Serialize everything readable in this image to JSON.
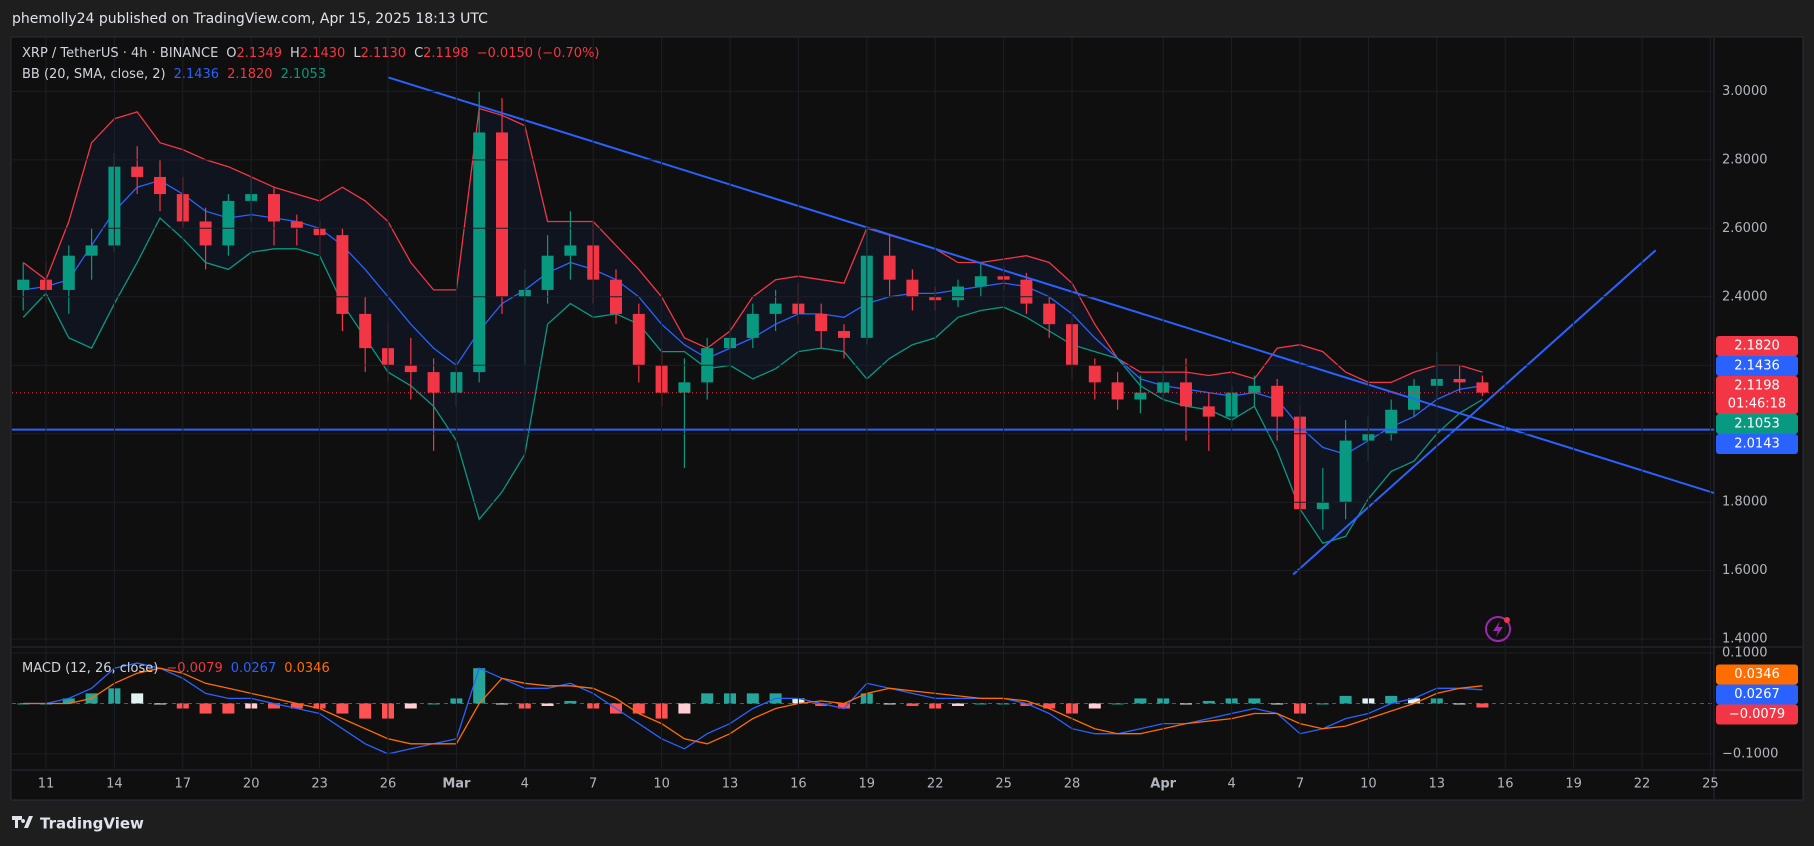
{
  "header": {
    "publisher": "phemolly24 published on TradingView.com, Apr 15, 2025 18:13 UTC"
  },
  "footer": {
    "brand": "TradingView"
  },
  "chart_data": [
    {
      "type": "candlestick",
      "symbol": "XRP / TetherUS · 4h · BINANCE",
      "ohlc_legend": [
        {
          "key": "O",
          "value": "2.1349"
        },
        {
          "key": "H",
          "value": "2.1430"
        },
        {
          "key": "L",
          "value": "2.1130"
        },
        {
          "key": "C",
          "value": "2.1198"
        }
      ],
      "change": "−0.0150 (−0.70%)",
      "indicator": "BB (20, SMA, close, 2)",
      "indicator_values": [
        {
          "value": "2.1436",
          "color": "#2962ff"
        },
        {
          "value": "2.1820",
          "color": "#f23645"
        },
        {
          "value": "2.1053",
          "color": "#089981"
        }
      ],
      "categories": [
        null,
        "11",
        null,
        null,
        "14",
        null,
        null,
        "17",
        null,
        null,
        "20",
        null,
        null,
        "23",
        null,
        null,
        "26",
        null,
        null,
        "Mar",
        null,
        null,
        "4",
        null,
        null,
        "7",
        null,
        null,
        "10",
        null,
        null,
        "13",
        null,
        null,
        "16",
        null,
        null,
        "19",
        null,
        null,
        "22",
        null,
        null,
        "25",
        null,
        null,
        "28",
        null,
        null,
        null,
        "Apr",
        null,
        null,
        "4",
        null,
        null,
        "7",
        null,
        null,
        "10",
        null,
        null,
        "13",
        null,
        null,
        "16",
        null,
        null,
        "19",
        null,
        null,
        "22",
        null,
        null,
        "25"
      ],
      "open": [
        2.42,
        2.45,
        2.42,
        2.52,
        2.55,
        2.78,
        2.75,
        2.7,
        2.62,
        2.55,
        2.68,
        2.7,
        2.62,
        2.6,
        2.58,
        2.35,
        2.25,
        2.2,
        2.18,
        2.12,
        2.18,
        2.88,
        2.4,
        2.42,
        2.52,
        2.55,
        2.45,
        2.35,
        2.2,
        2.12,
        2.15,
        2.25,
        2.28,
        2.35,
        2.38,
        2.35,
        2.3,
        2.28,
        2.52,
        2.45,
        2.4,
        2.39,
        2.43,
        2.46,
        2.45,
        2.38,
        2.32,
        2.2,
        2.15,
        2.1,
        2.12,
        2.15,
        2.08,
        2.05,
        2.12,
        2.14,
        2.05,
        1.78,
        1.8,
        1.98,
        2.0,
        2.07,
        2.14,
        2.16,
        2.15,
        null,
        null,
        null,
        null,
        null,
        null,
        null,
        null,
        null,
        null
      ],
      "high": [
        2.5,
        2.5,
        2.55,
        2.6,
        2.82,
        2.84,
        2.8,
        2.75,
        2.66,
        2.7,
        2.75,
        2.72,
        2.64,
        2.62,
        2.6,
        2.4,
        2.32,
        2.28,
        2.22,
        2.22,
        3.0,
        2.98,
        2.48,
        2.58,
        2.65,
        2.62,
        2.48,
        2.38,
        2.25,
        2.22,
        2.28,
        2.32,
        2.38,
        2.42,
        2.44,
        2.38,
        2.32,
        2.6,
        2.58,
        2.48,
        2.43,
        2.45,
        2.5,
        2.49,
        2.47,
        2.4,
        2.34,
        2.22,
        2.18,
        2.17,
        2.2,
        2.22,
        2.12,
        2.14,
        2.17,
        2.16,
        2.08,
        1.9,
        2.04,
        2.05,
        2.1,
        2.16,
        2.24,
        2.2,
        2.17,
        null,
        null,
        null,
        null,
        null,
        null,
        null,
        null,
        null,
        null
      ],
      "low": [
        2.36,
        2.38,
        2.35,
        2.45,
        2.53,
        2.7,
        2.65,
        2.6,
        2.48,
        2.52,
        2.62,
        2.55,
        2.55,
        2.52,
        2.3,
        2.18,
        2.15,
        2.1,
        1.95,
        2.08,
        2.15,
        2.35,
        2.2,
        2.38,
        2.45,
        2.38,
        2.32,
        2.15,
        2.08,
        1.9,
        2.1,
        2.2,
        2.25,
        2.3,
        2.32,
        2.25,
        2.22,
        2.26,
        2.4,
        2.36,
        2.36,
        2.37,
        2.4,
        2.42,
        2.35,
        2.28,
        2.16,
        2.1,
        2.07,
        2.06,
        2.1,
        1.98,
        1.95,
        2.02,
        2.08,
        1.98,
        1.62,
        1.72,
        1.75,
        1.92,
        1.98,
        2.05,
        2.1,
        2.12,
        2.11,
        null,
        null,
        null,
        null,
        null,
        null,
        null,
        null,
        null,
        null
      ],
      "close": [
        2.45,
        2.42,
        2.52,
        2.55,
        2.78,
        2.75,
        2.7,
        2.62,
        2.55,
        2.68,
        2.7,
        2.62,
        2.6,
        2.58,
        2.35,
        2.25,
        2.2,
        2.18,
        2.12,
        2.18,
        2.88,
        2.4,
        2.42,
        2.52,
        2.55,
        2.45,
        2.35,
        2.2,
        2.12,
        2.15,
        2.25,
        2.28,
        2.35,
        2.38,
        2.35,
        2.3,
        2.28,
        2.52,
        2.45,
        2.4,
        2.39,
        2.43,
        2.46,
        2.45,
        2.38,
        2.32,
        2.2,
        2.15,
        2.1,
        2.12,
        2.15,
        2.08,
        2.05,
        2.12,
        2.14,
        2.05,
        1.78,
        1.8,
        1.98,
        2.0,
        2.07,
        2.14,
        2.16,
        2.15,
        2.12,
        null,
        null,
        null,
        null,
        null,
        null,
        null,
        null,
        null,
        null
      ],
      "up_color": "#089981",
      "down_color": "#f23645",
      "bb_upper": [
        2.5,
        2.45,
        2.62,
        2.85,
        2.92,
        2.94,
        2.85,
        2.83,
        2.8,
        2.78,
        2.75,
        2.72,
        2.7,
        2.68,
        2.72,
        2.68,
        2.62,
        2.5,
        2.42,
        2.42,
        2.95,
        2.93,
        2.9,
        2.62,
        2.62,
        2.62,
        2.55,
        2.48,
        2.4,
        2.28,
        2.25,
        2.3,
        2.4,
        2.45,
        2.46,
        2.45,
        2.44,
        2.6,
        2.58,
        2.56,
        2.54,
        2.5,
        2.5,
        2.51,
        2.52,
        2.5,
        2.44,
        2.32,
        2.22,
        2.18,
        2.18,
        2.18,
        2.17,
        2.18,
        2.16,
        2.25,
        2.26,
        2.24,
        2.18,
        2.15,
        2.15,
        2.18,
        2.2,
        2.2,
        2.18,
        null,
        null,
        null,
        null,
        null,
        null,
        null,
        null,
        null,
        null
      ],
      "bb_middle": [
        2.42,
        2.43,
        2.45,
        2.55,
        2.65,
        2.72,
        2.74,
        2.7,
        2.65,
        2.63,
        2.64,
        2.63,
        2.62,
        2.6,
        2.55,
        2.48,
        2.4,
        2.32,
        2.25,
        2.2,
        2.3,
        2.38,
        2.42,
        2.47,
        2.5,
        2.48,
        2.45,
        2.4,
        2.32,
        2.26,
        2.22,
        2.25,
        2.28,
        2.32,
        2.35,
        2.35,
        2.34,
        2.38,
        2.4,
        2.41,
        2.41,
        2.42,
        2.43,
        2.44,
        2.43,
        2.4,
        2.35,
        2.28,
        2.22,
        2.16,
        2.14,
        2.13,
        2.12,
        2.11,
        2.12,
        2.1,
        2.02,
        1.96,
        1.94,
        1.98,
        2.02,
        2.05,
        2.1,
        2.13,
        2.14,
        null,
        null,
        null,
        null,
        null,
        null,
        null,
        null,
        null,
        null
      ],
      "bb_lower": [
        2.34,
        2.41,
        2.28,
        2.25,
        2.38,
        2.5,
        2.63,
        2.57,
        2.5,
        2.48,
        2.53,
        2.54,
        2.54,
        2.52,
        2.38,
        2.28,
        2.18,
        2.14,
        2.08,
        1.98,
        1.75,
        1.83,
        1.94,
        2.32,
        2.38,
        2.34,
        2.35,
        2.32,
        2.24,
        2.24,
        2.19,
        2.2,
        2.16,
        2.19,
        2.24,
        2.25,
        2.24,
        2.16,
        2.22,
        2.26,
        2.28,
        2.34,
        2.36,
        2.37,
        2.34,
        2.3,
        2.26,
        2.24,
        2.22,
        2.14,
        2.1,
        2.08,
        2.07,
        2.04,
        2.08,
        1.95,
        1.78,
        1.68,
        1.7,
        1.81,
        1.89,
        1.92,
        2.0,
        2.06,
        2.1,
        null,
        null,
        null,
        null,
        null,
        null,
        null,
        null,
        null,
        null
      ],
      "bb_colors": {
        "upper": "#f23645",
        "middle": "#2962ff",
        "lower": "#089981",
        "fill": "#2962ff"
      },
      "ylim": [
        1.38,
        3.15
      ],
      "yticks": [
        {
          "value": 1.4,
          "label": "1.4000"
        },
        {
          "value": 1.6,
          "label": "1.6000"
        },
        {
          "value": 1.8,
          "label": "1.8000"
        },
        {
          "value": 2.0,
          "label": "2.0000"
        },
        {
          "value": 2.2,
          "label": "2.2000"
        },
        {
          "value": 2.4,
          "label": "2.4000"
        },
        {
          "value": 2.6,
          "label": "2.6000"
        },
        {
          "value": 2.8,
          "label": "2.8000"
        },
        {
          "value": 3.0,
          "label": "3.0000"
        }
      ],
      "grid": true,
      "hline": {
        "value": 2.012,
        "color": "#2962ff"
      },
      "trendlines": [
        {
          "x": [
            16,
            74.2
          ],
          "y": [
            3.041,
            1.826
          ]
        },
        {
          "x": [
            55.7,
            71.6
          ],
          "y": [
            1.589,
            2.536
          ]
        }
      ],
      "trendline_color": "#2962ff",
      "price_labels": [
        {
          "value": 2.182,
          "label": "2.1820",
          "color": "#f23645"
        },
        {
          "value": 2.1436,
          "label": "2.1436",
          "color": "#2962ff"
        },
        {
          "value": 2.1198,
          "label": "2.1198",
          "color": "#f23645",
          "countdown": "01:46:18"
        },
        {
          "value": 2.1053,
          "label": "2.1053",
          "color": "#089981"
        },
        {
          "value": 2.0143,
          "label": "2.0143",
          "color": "#2962ff"
        }
      ]
    },
    {
      "type": "macd",
      "indicator": "MACD (12, 26, close)",
      "indicator_values": [
        {
          "value": "−0.0079",
          "color": "#f23645"
        },
        {
          "value": "0.0267",
          "color": "#2962ff"
        },
        {
          "value": "0.0346",
          "color": "#ff6d00"
        }
      ],
      "histogram": [
        0,
        0,
        0.01,
        0.02,
        0.03,
        0.02,
        0,
        -0.01,
        -0.02,
        -0.02,
        -0.01,
        -0.01,
        -0.01,
        -0.01,
        -0.02,
        -0.03,
        -0.03,
        -0.01,
        0,
        0.01,
        0.07,
        0,
        -0.01,
        -0.005,
        0.005,
        -0.01,
        -0.02,
        -0.02,
        -0.03,
        -0.02,
        0.02,
        0.02,
        0.02,
        0.02,
        0.01,
        -0.005,
        -0.01,
        0.02,
        0,
        -0.005,
        -0.01,
        -0.005,
        0,
        0,
        -0.005,
        -0.01,
        -0.02,
        -0.01,
        0,
        0.01,
        0.01,
        0,
        0.005,
        0.01,
        0.01,
        0,
        -0.02,
        0,
        0.015,
        0.01,
        0.015,
        0.01,
        0.01,
        0,
        -0.008,
        null,
        null,
        null,
        null,
        null,
        null,
        null,
        null,
        null,
        null
      ],
      "macd": [
        0,
        0,
        0.01,
        0.03,
        0.07,
        0.08,
        0.07,
        0.05,
        0.02,
        0.01,
        0.01,
        0,
        -0.01,
        -0.02,
        -0.05,
        -0.08,
        -0.1,
        -0.09,
        -0.08,
        -0.07,
        0.07,
        0.05,
        0.03,
        0.03,
        0.04,
        0.02,
        -0.01,
        -0.04,
        -0.07,
        -0.09,
        -0.06,
        -0.04,
        -0.01,
        0.01,
        0.01,
        0,
        -0.01,
        0.04,
        0.03,
        0.02,
        0.01,
        0.01,
        0.01,
        0.01,
        0,
        -0.02,
        -0.05,
        -0.06,
        -0.06,
        -0.05,
        -0.04,
        -0.04,
        -0.03,
        -0.02,
        -0.01,
        -0.02,
        -0.06,
        -0.05,
        -0.03,
        -0.02,
        0,
        0.01,
        0.03,
        0.03,
        0.027,
        null,
        null,
        null,
        null,
        null,
        null,
        null,
        null,
        null,
        null
      ],
      "signal": [
        0,
        0,
        0,
        0.01,
        0.04,
        0.06,
        0.07,
        0.06,
        0.04,
        0.03,
        0.02,
        0.01,
        0,
        -0.01,
        -0.03,
        -0.05,
        -0.07,
        -0.08,
        -0.08,
        -0.08,
        0,
        0.05,
        0.04,
        0.035,
        0.035,
        0.03,
        0.01,
        -0.02,
        -0.04,
        -0.07,
        -0.08,
        -0.06,
        -0.03,
        -0.01,
        0,
        0.005,
        0,
        0.02,
        0.03,
        0.025,
        0.02,
        0.015,
        0.01,
        0.01,
        0.005,
        -0.01,
        -0.03,
        -0.05,
        -0.06,
        -0.06,
        -0.05,
        -0.04,
        -0.035,
        -0.03,
        -0.02,
        -0.02,
        -0.04,
        -0.05,
        -0.045,
        -0.03,
        -0.015,
        0,
        0.02,
        0.03,
        0.035,
        null,
        null,
        null,
        null,
        null,
        null,
        null,
        null,
        null,
        null
      ],
      "macd_color": "#2962ff",
      "signal_color": "#ff6d00",
      "hist_colors": [
        "#26a69a",
        "#e0f2f1",
        "#ffcdd2",
        "#ff5252"
      ],
      "ylim": [
        -0.13,
        0.11
      ],
      "yticks": [
        {
          "value": -0.1,
          "label": "−0.1000"
        },
        {
          "value": 0.1,
          "label": "0.1000"
        }
      ],
      "value_labels": [
        {
          "value": 0.0346,
          "label": "0.0346",
          "color": "#ff6d00"
        },
        {
          "value": 0.0267,
          "label": "0.0267",
          "color": "#2962ff"
        },
        {
          "value": -0.0079,
          "label": "−0.0079",
          "color": "#f23645"
        }
      ]
    }
  ]
}
